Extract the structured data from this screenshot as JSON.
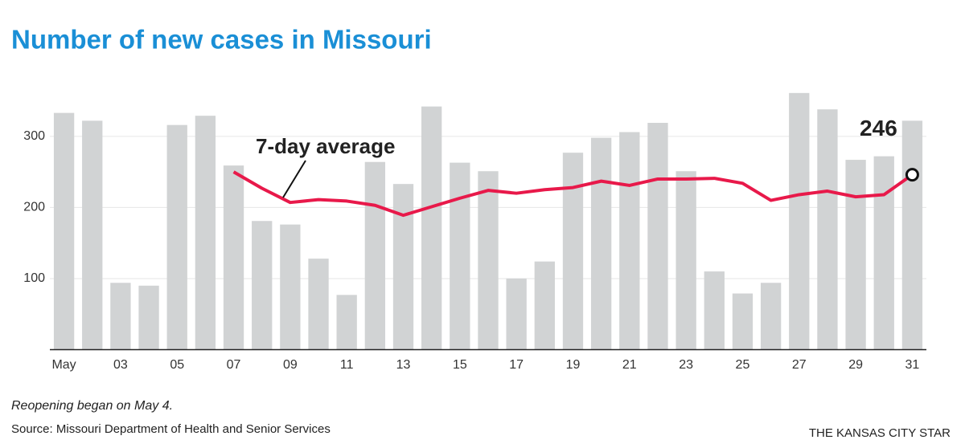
{
  "chart_data": {
    "type": "bar",
    "title": "Number of new cases in Missouri",
    "note": "Reopening began on May 4.",
    "source": "Source: Missouri Department of Health and Senior Services",
    "credit": "THE KANSAS CITY STAR",
    "categories": [
      "May",
      null,
      "03",
      null,
      "05",
      null,
      "07",
      null,
      "09",
      null,
      "11",
      null,
      "13",
      null,
      "15",
      null,
      "17",
      null,
      "19",
      null,
      "21",
      null,
      "23",
      null,
      "25",
      null,
      "27",
      null,
      "29",
      null,
      "31"
    ],
    "series": [
      {
        "type": "bar",
        "color": "#d1d3d4",
        "values": [
          333,
          322,
          94,
          90,
          316,
          329,
          259,
          181,
          176,
          128,
          77,
          264,
          233,
          342,
          263,
          251,
          100,
          124,
          277,
          298,
          306,
          319,
          251,
          110,
          79,
          94,
          361,
          338,
          267,
          272,
          322
        ]
      },
      {
        "type": "line",
        "name": "7-day average",
        "color": "#e8194a",
        "values": [
          null,
          null,
          null,
          null,
          null,
          null,
          250,
          227,
          207,
          211,
          209,
          203,
          189,
          201,
          213,
          224,
          220,
          225,
          228,
          237,
          231,
          240,
          240,
          241,
          234,
          210,
          218,
          223,
          215,
          218,
          246
        ]
      }
    ],
    "ylim": [
      0,
      380
    ],
    "yticks": [
      100,
      200,
      300
    ],
    "grid": true
  }
}
